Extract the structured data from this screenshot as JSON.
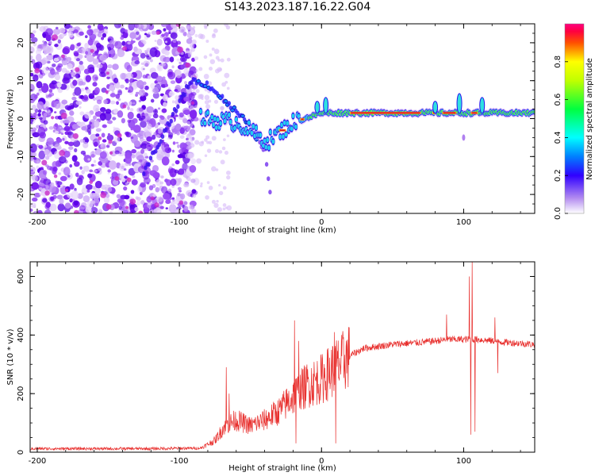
{
  "title": "S143.2023.187.16.22.G04",
  "chart_data": [
    {
      "type": "heatmap",
      "xlabel": "Height of straight line (km)",
      "ylabel": "Frequency (Hz)",
      "xlim": [
        -205,
        150
      ],
      "ylim": [
        -25,
        25
      ],
      "xticks": [
        -200,
        -100,
        0,
        100
      ],
      "yticks": [
        -20,
        -10,
        0,
        10,
        20
      ],
      "colorbar": {
        "label": "Normalized spectral amplitude",
        "range": [
          0,
          1
        ],
        "ticks": [
          0.0,
          0.2,
          0.4,
          0.6,
          0.8
        ]
      },
      "features": {
        "noise_region_x": [
          -205,
          -88
        ],
        "carrier_line": [
          {
            "x": -85,
            "y": 0
          },
          {
            "x": -60,
            "y": -1
          },
          {
            "x": -38,
            "y": -6
          },
          {
            "x": -20,
            "y": -1
          },
          {
            "x": 0,
            "y": 1.5
          },
          {
            "x": 150,
            "y": 1.5
          }
        ],
        "diagonal_streak": [
          {
            "x": -125,
            "y": -14
          },
          {
            "x": -92,
            "y": 10
          },
          {
            "x": -80,
            "y": 9
          },
          {
            "x": -55,
            "y": 0
          },
          {
            "x": -40,
            "y": -8
          },
          {
            "x": -35,
            "y": -22
          }
        ]
      }
    },
    {
      "type": "line",
      "xlabel": "Height of straight line (km)",
      "ylabel": "SNR (10 * v/v)",
      "xlim": [
        -205,
        150
      ],
      "ylim": [
        0,
        650
      ],
      "xticks": [
        -200,
        -100,
        0,
        100
      ],
      "yticks": [
        0,
        200,
        400,
        600
      ],
      "color": "#e8312f",
      "envelope": [
        {
          "x": -205,
          "y": 12
        },
        {
          "x": -120,
          "y": 12
        },
        {
          "x": -85,
          "y": 14
        },
        {
          "x": -75,
          "y": 40
        },
        {
          "x": -68,
          "y": 90
        },
        {
          "x": -60,
          "y": 110
        },
        {
          "x": -50,
          "y": 90
        },
        {
          "x": -40,
          "y": 110
        },
        {
          "x": -30,
          "y": 140
        },
        {
          "x": -20,
          "y": 190
        },
        {
          "x": -10,
          "y": 230
        },
        {
          "x": 0,
          "y": 250
        },
        {
          "x": 10,
          "y": 290
        },
        {
          "x": 20,
          "y": 330
        },
        {
          "x": 30,
          "y": 355
        },
        {
          "x": 50,
          "y": 368
        },
        {
          "x": 70,
          "y": 375
        },
        {
          "x": 90,
          "y": 385
        },
        {
          "x": 110,
          "y": 385
        },
        {
          "x": 130,
          "y": 375
        },
        {
          "x": 150,
          "y": 368
        }
      ],
      "spikes": [
        {
          "x": -67,
          "y": 290
        },
        {
          "x": -65,
          "y": 200
        },
        {
          "x": -19,
          "y": 450
        },
        {
          "x": -16,
          "y": 380
        },
        {
          "x": -18,
          "y": 30
        },
        {
          "x": 9,
          "y": 410
        },
        {
          "x": 10,
          "y": 30
        },
        {
          "x": 14,
          "y": 400
        },
        {
          "x": 88,
          "y": 470
        },
        {
          "x": 104,
          "y": 600
        },
        {
          "x": 105,
          "y": 60
        },
        {
          "x": 106,
          "y": 650
        },
        {
          "x": 108,
          "y": 70
        },
        {
          "x": 122,
          "y": 460
        },
        {
          "x": 124,
          "y": 270
        }
      ]
    }
  ]
}
